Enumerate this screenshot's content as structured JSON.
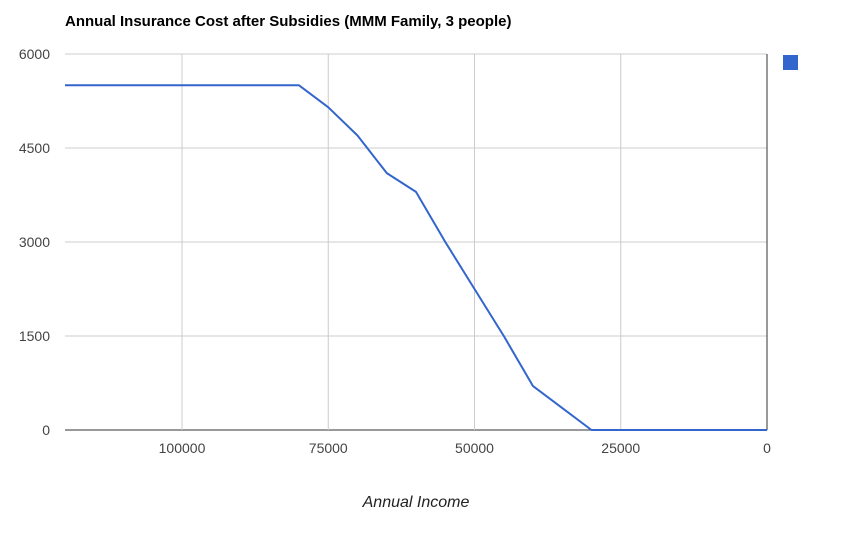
{
  "chart_data": {
    "type": "line",
    "title": "Annual Insurance Cost after Subsidies (MMM Family, 3 people)",
    "xlabel": "Annual Income",
    "ylabel": "",
    "x_axis_reversed": true,
    "xlim": [
      120000,
      0
    ],
    "ylim": [
      0,
      6000
    ],
    "grid": true,
    "x_ticks": [
      {
        "v": 100000,
        "label": "100000"
      },
      {
        "v": 75000,
        "label": "75000"
      },
      {
        "v": 50000,
        "label": "50000"
      },
      {
        "v": 25000,
        "label": "25000"
      },
      {
        "v": 0,
        "label": "0"
      }
    ],
    "y_ticks": [
      {
        "v": 0,
        "label": "0"
      },
      {
        "v": 1500,
        "label": "1500"
      },
      {
        "v": 3000,
        "label": "3000"
      },
      {
        "v": 4500,
        "label": "4500"
      },
      {
        "v": 6000,
        "label": "6000"
      }
    ],
    "legend": {
      "position": "top-right",
      "label": "",
      "swatch_color": "#3366cc"
    },
    "series": [
      {
        "name": "",
        "color": "#3366cc",
        "points": [
          [
            120000,
            5500
          ],
          [
            115000,
            5500
          ],
          [
            110000,
            5500
          ],
          [
            105000,
            5500
          ],
          [
            100000,
            5500
          ],
          [
            95000,
            5500
          ],
          [
            90000,
            5500
          ],
          [
            85000,
            5500
          ],
          [
            80000,
            5500
          ],
          [
            75000,
            5150
          ],
          [
            70000,
            4700
          ],
          [
            65000,
            4100
          ],
          [
            60000,
            3800
          ],
          [
            55000,
            3000
          ],
          [
            50000,
            2250
          ],
          [
            45000,
            1500
          ],
          [
            40000,
            700
          ],
          [
            35000,
            350
          ],
          [
            30000,
            0
          ],
          [
            25000,
            0
          ],
          [
            20000,
            0
          ],
          [
            15000,
            0
          ],
          [
            10000,
            0
          ],
          [
            5000,
            0
          ],
          [
            0,
            0
          ]
        ]
      }
    ]
  },
  "colors": {
    "background": "#ffffff",
    "gridline": "#cccccc",
    "baseline": "#333333",
    "tick_label": "#444444",
    "title_text": "#000000",
    "axis_title_text": "#222222"
  }
}
